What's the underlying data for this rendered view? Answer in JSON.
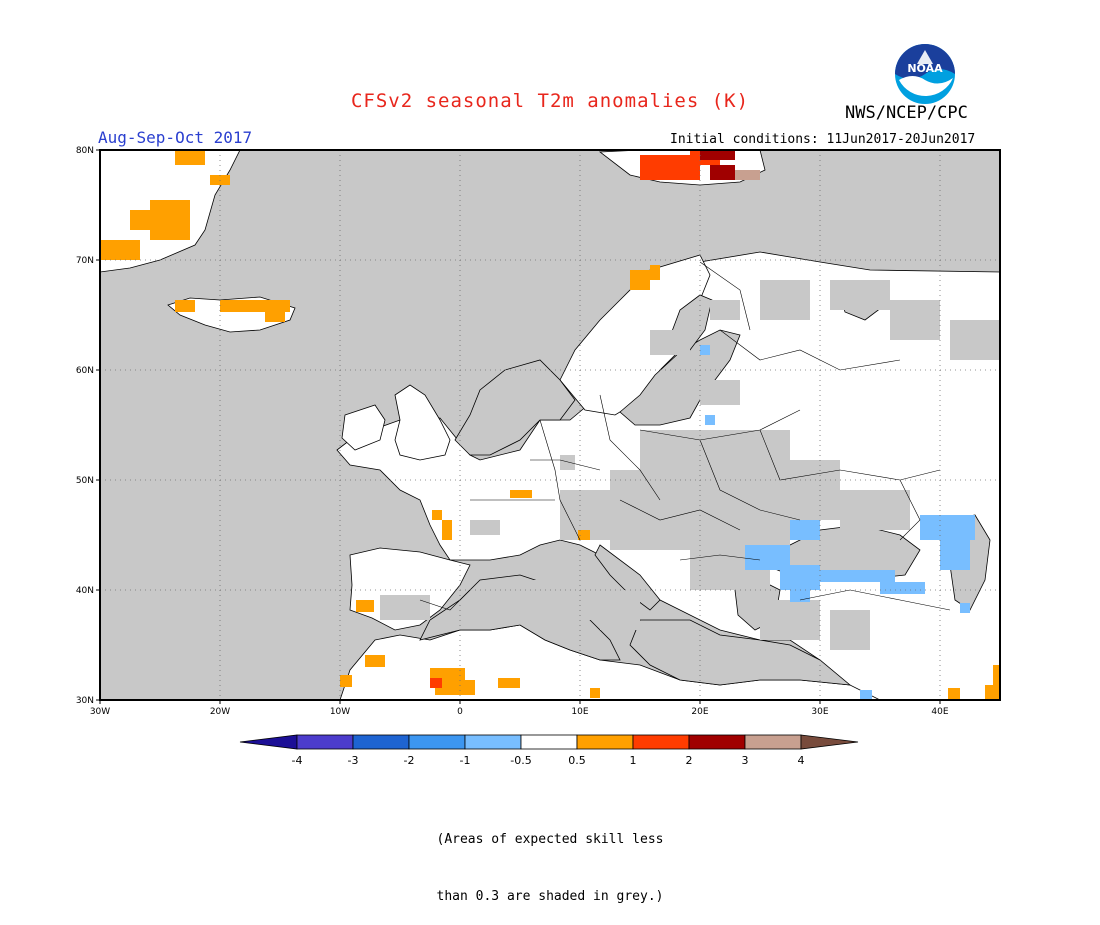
{
  "header": {
    "title": "CFSv2 seasonal T2m anomalies (K)",
    "agency": "NWS/NCEP/CPC",
    "logo_text": "NOAA",
    "season": "Aug-Sep-Oct 2017",
    "initial_conditions": "Initial conditions: 11Jun2017-20Jun2017"
  },
  "map": {
    "lon_range": [
      -30,
      45
    ],
    "lat_range": [
      30,
      80
    ],
    "lat_labels": [
      "80N",
      "70N",
      "60N",
      "50N",
      "40N",
      "30N"
    ],
    "lon_labels": [
      "30W",
      "20W",
      "10W",
      "0",
      "10E",
      "20E",
      "30E",
      "40E"
    ],
    "grid": true,
    "ocean_color": "#c8c8c8",
    "land_color": "#ffffff"
  },
  "colorbar": {
    "tick_labels": [
      "-4",
      "-3",
      "-2",
      "-1",
      "-0.5",
      "0.5",
      "1",
      "2",
      "3",
      "4"
    ],
    "colors": [
      "#1c0f96",
      "#4c3ccc",
      "#1e64d2",
      "#3c96f0",
      "#78beff",
      "#ffffff",
      "#ffa000",
      "#ff3c00",
      "#a00000",
      "#c8a090",
      "#784b3c"
    ]
  },
  "note": {
    "line1": "(Areas of expected skill less",
    "line2": "than 0.3 are shaded in grey.)"
  }
}
